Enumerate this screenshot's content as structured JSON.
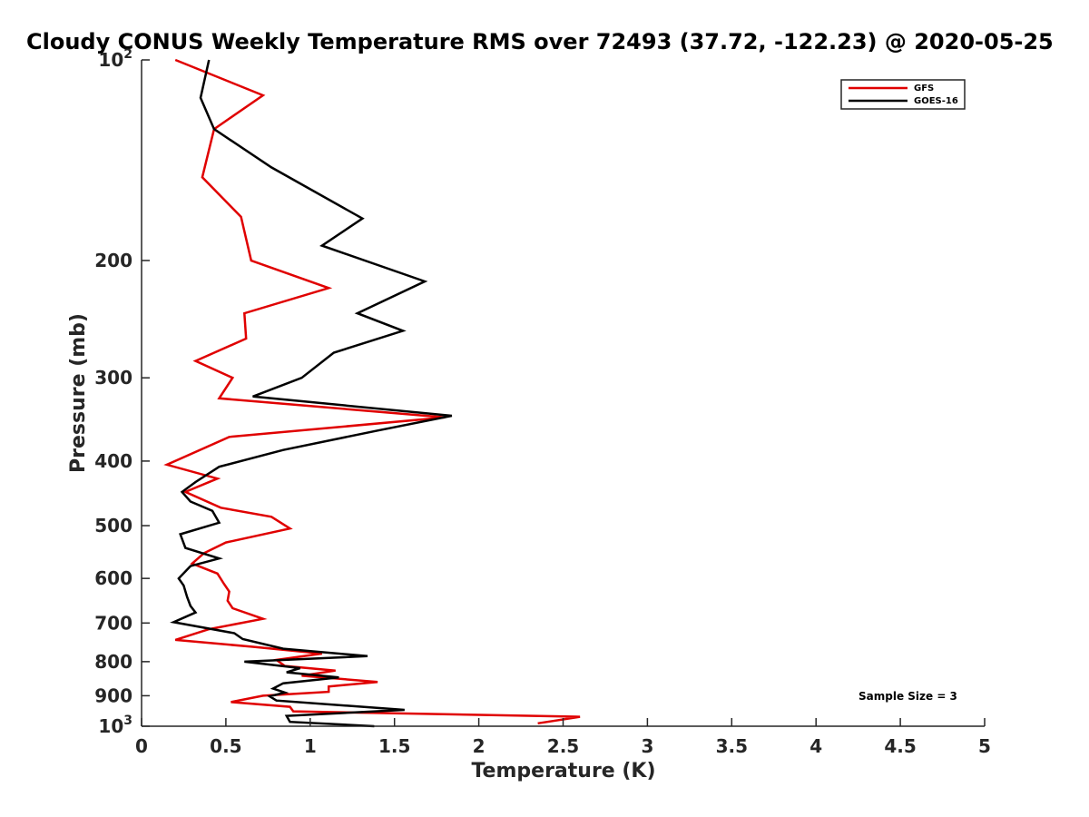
{
  "chart_data": {
    "type": "line",
    "title": "Cloudy CONUS Weekly Temperature RMS over 72493 (37.72, -122.23) @ 2020-05-25",
    "xlabel": "Temperature (K)",
    "ylabel": "Pressure (mb)",
    "xlim": [
      0,
      5
    ],
    "ylim": [
      100,
      1000
    ],
    "y_scale": "log",
    "y_reversed": true,
    "grid": false,
    "legend_position": "top-right",
    "x_ticks": [
      "0",
      "0.5",
      "1",
      "1.5",
      "2",
      "2.5",
      "3",
      "3.5",
      "4",
      "4.5",
      "5"
    ],
    "y_ticks": [
      {
        "value": 100,
        "base": "10",
        "exp": "2"
      },
      {
        "value": 200,
        "label": "200"
      },
      {
        "value": 300,
        "label": "300"
      },
      {
        "value": 400,
        "label": "400"
      },
      {
        "value": 500,
        "label": "500"
      },
      {
        "value": 600,
        "label": "600"
      },
      {
        "value": 700,
        "label": "700"
      },
      {
        "value": 800,
        "label": "800"
      },
      {
        "value": 900,
        "label": "900"
      },
      {
        "value": 1000,
        "base": "10",
        "exp": "3"
      }
    ],
    "annotation": "Sample Size = 3",
    "series": [
      {
        "name": "GFS",
        "color": "#e00000",
        "points": [
          [
            0.2,
            100
          ],
          [
            0.72,
            113
          ],
          [
            0.43,
            127
          ],
          [
            0.36,
            150
          ],
          [
            0.59,
            172
          ],
          [
            0.65,
            200
          ],
          [
            1.11,
            220
          ],
          [
            0.61,
            240
          ],
          [
            0.62,
            262
          ],
          [
            0.32,
            283
          ],
          [
            0.54,
            300
          ],
          [
            0.46,
            322
          ],
          [
            1.8,
            344
          ],
          [
            0.52,
            368
          ],
          [
            0.15,
            405
          ],
          [
            0.45,
            425
          ],
          [
            0.26,
            445
          ],
          [
            0.47,
            470
          ],
          [
            0.77,
            485
          ],
          [
            0.88,
            505
          ],
          [
            0.5,
            530
          ],
          [
            0.37,
            550
          ],
          [
            0.3,
            570
          ],
          [
            0.45,
            590
          ],
          [
            0.49,
            612
          ],
          [
            0.52,
            628
          ],
          [
            0.51,
            648
          ],
          [
            0.54,
            665
          ],
          [
            0.72,
            690
          ],
          [
            0.4,
            715
          ],
          [
            0.2,
            742
          ],
          [
            0.66,
            760
          ],
          [
            1.07,
            778
          ],
          [
            0.8,
            795
          ],
          [
            0.85,
            812
          ],
          [
            1.15,
            825
          ],
          [
            0.95,
            840
          ],
          [
            1.4,
            858
          ],
          [
            1.11,
            872
          ],
          [
            1.11,
            888
          ],
          [
            0.72,
            900
          ],
          [
            0.53,
            920
          ],
          [
            0.88,
            935
          ],
          [
            0.9,
            950
          ],
          [
            2.6,
            968
          ],
          [
            2.35,
            990
          ]
        ]
      },
      {
        "name": "GOES-16",
        "color": "#000000",
        "points": [
          [
            0.4,
            100
          ],
          [
            0.35,
            114
          ],
          [
            0.43,
            127
          ],
          [
            0.77,
            145
          ],
          [
            1.31,
            173
          ],
          [
            1.07,
            190
          ],
          [
            1.68,
            215
          ],
          [
            1.28,
            240
          ],
          [
            1.55,
            255
          ],
          [
            1.14,
            275
          ],
          [
            0.95,
            300
          ],
          [
            0.66,
            320
          ],
          [
            1.84,
            342
          ],
          [
            1.4,
            360
          ],
          [
            0.84,
            385
          ],
          [
            0.46,
            408
          ],
          [
            0.32,
            430
          ],
          [
            0.24,
            445
          ],
          [
            0.29,
            460
          ],
          [
            0.42,
            475
          ],
          [
            0.46,
            495
          ],
          [
            0.23,
            515
          ],
          [
            0.26,
            540
          ],
          [
            0.46,
            560
          ],
          [
            0.29,
            575
          ],
          [
            0.22,
            600
          ],
          [
            0.25,
            615
          ],
          [
            0.27,
            640
          ],
          [
            0.29,
            660
          ],
          [
            0.32,
            675
          ],
          [
            0.19,
            698
          ],
          [
            0.55,
            725
          ],
          [
            0.6,
            740
          ],
          [
            0.84,
            765
          ],
          [
            1.34,
            785
          ],
          [
            0.61,
            800
          ],
          [
            0.94,
            818
          ],
          [
            0.86,
            830
          ],
          [
            1.17,
            845
          ],
          [
            0.84,
            862
          ],
          [
            0.78,
            878
          ],
          [
            0.85,
            890
          ],
          [
            0.76,
            902
          ],
          [
            0.8,
            915
          ],
          [
            1.56,
            945
          ],
          [
            0.86,
            965
          ],
          [
            0.88,
            985
          ],
          [
            1.38,
            1000
          ]
        ]
      }
    ]
  }
}
